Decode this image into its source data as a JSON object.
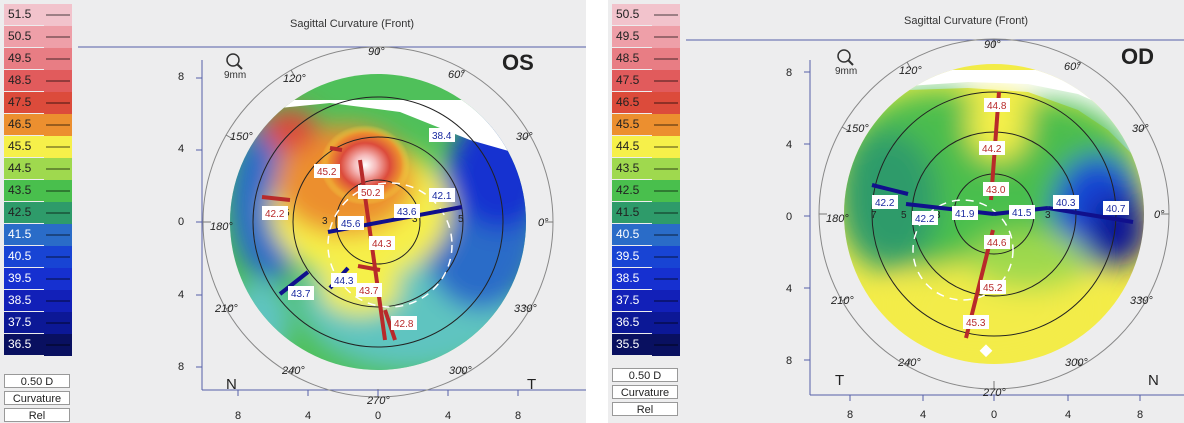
{
  "left": {
    "legend_values": [
      "51.5",
      "50.5",
      "49.5",
      "48.5",
      "47.5",
      "46.5",
      "45.5",
      "44.5",
      "43.5",
      "42.5",
      "41.5",
      "40.5",
      "39.5",
      "38.5",
      "37.5",
      "36.5"
    ],
    "step": "0.50 D",
    "mode": "Curvature",
    "ref": "Rel",
    "title": "Sagittal Curvature (Front)",
    "eye": "OS",
    "zoom": "9mm",
    "nasal": "N",
    "temporal": "T",
    "angles": [
      "90°",
      "60°",
      "30°",
      "0°",
      "330°",
      "300°",
      "270°",
      "240°",
      "210°",
      "180°",
      "150°",
      "120°"
    ],
    "y_ticks": [
      "8",
      "4",
      "0",
      "4",
      "8"
    ],
    "x_ticks": [
      "8",
      "4",
      "0",
      "4",
      "8"
    ],
    "ring_labels": [
      "5",
      "3",
      "3",
      "5"
    ],
    "readings": [
      "38.4",
      "45.2",
      "50.2",
      "42.2",
      "43.6",
      "42.1",
      "45.6",
      "44.3",
      "43.7",
      "44.3",
      "43.7",
      "42.8"
    ]
  },
  "right": {
    "legend_values": [
      "50.5",
      "49.5",
      "48.5",
      "47.5",
      "46.5",
      "45.5",
      "44.5",
      "43.5",
      "42.5",
      "41.5",
      "40.5",
      "39.5",
      "38.5",
      "37.5",
      "36.5",
      "35.5"
    ],
    "step": "0.50 D",
    "mode": "Curvature",
    "ref": "Rel",
    "title": "Sagittal Curvature (Front)",
    "eye": "OD",
    "zoom": "9mm",
    "nasal": "N",
    "temporal": "T",
    "angles": [
      "90°",
      "60°",
      "30°",
      "0°",
      "330°",
      "300°",
      "270°",
      "240°",
      "210°",
      "180°",
      "150°",
      "120°"
    ],
    "y_ticks": [
      "8",
      "4",
      "0",
      "4",
      "8"
    ],
    "x_ticks": [
      "8",
      "4",
      "0",
      "4",
      "8"
    ],
    "ring_labels": [
      "7",
      "5",
      "3",
      "3"
    ],
    "readings": [
      "44.8",
      "44.2",
      "43.0",
      "42.2",
      "42.2",
      "41.9",
      "41.5",
      "40.3",
      "40.7",
      "44.6",
      "45.2",
      "45.3"
    ]
  },
  "colors": {
    "legend_scale": [
      "#f2c3cc",
      "#ee9fa8",
      "#e87d84",
      "#e15b5c",
      "#dc4b3b",
      "#ec8f2f",
      "#f6f04a",
      "#9fd94e",
      "#49bf4d",
      "#2e9b6a",
      "#2a6cc8",
      "#1844d4",
      "#1630d0",
      "#1220b8",
      "#0c1896",
      "#091060"
    ],
    "axis_blue": "#4a5ab0",
    "meridian_red": "#b82a2a",
    "meridian_blue": "#10108c"
  }
}
